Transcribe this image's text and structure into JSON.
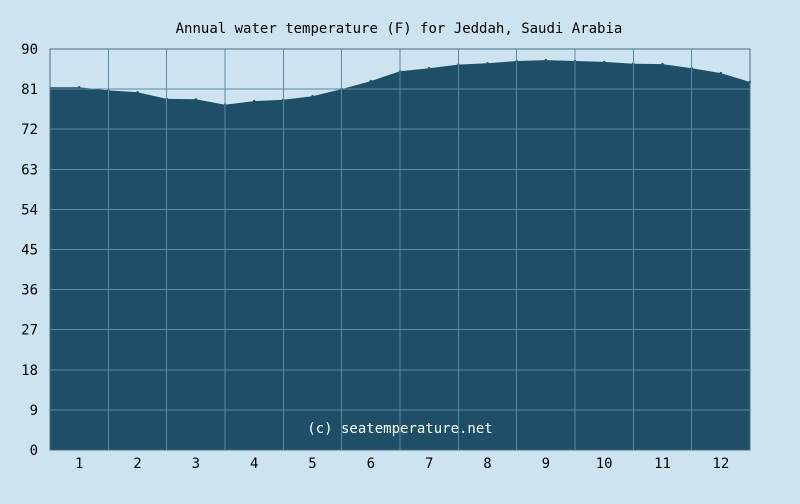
{
  "chart_data": {
    "type": "area",
    "title": "Annual water temperature (F) for Jeddah, Saudi Arabia",
    "xlabel": "",
    "ylabel": "",
    "ylim": [
      0,
      90
    ],
    "yticks": [
      0,
      9,
      18,
      27,
      36,
      45,
      54,
      63,
      72,
      81,
      90
    ],
    "xticks": [
      "1",
      "2",
      "3",
      "4",
      "5",
      "6",
      "7",
      "8",
      "9",
      "10",
      "11",
      "12"
    ],
    "grid": true,
    "watermark": "(c) seatemperature.net",
    "series": [
      {
        "x": [
          1.0,
          1.5,
          2.0,
          2.5,
          3.0,
          3.5,
          4.0,
          4.5,
          5.0,
          5.5,
          6.0,
          6.5,
          7.0,
          7.5,
          8.0,
          8.5,
          9.0,
          9.5,
          10.0,
          10.5,
          11.0,
          11.5,
          12.0,
          12.5
        ],
        "values": [
          81.4,
          80.7,
          80.3,
          78.8,
          78.7,
          77.5,
          78.3,
          78.6,
          79.4,
          81.0,
          82.8,
          85.0,
          85.7,
          86.5,
          86.8,
          87.3,
          87.5,
          87.3,
          87.1,
          86.7,
          86.6,
          85.7,
          84.6,
          82.6
        ],
        "color": "#1f4e69"
      }
    ],
    "colors": {
      "background": "#cde3ef",
      "area": "#1f4e69",
      "grid": "#5d8aa3",
      "axis": "#4a6f86",
      "text": "#000000",
      "watermark": "#ffffff"
    }
  }
}
